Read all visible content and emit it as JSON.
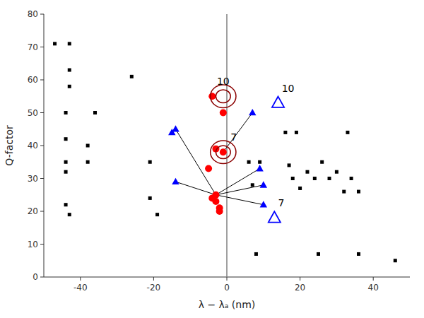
{
  "chart_data": {
    "type": "scatter",
    "xlabel": "λ − λₐ (nm)",
    "ylabel": "Q-factor",
    "xlim": [
      -50,
      50
    ],
    "ylim": [
      0,
      80
    ],
    "xticks": [
      -40,
      -20,
      0,
      20,
      40
    ],
    "yticks": [
      0,
      10,
      20,
      30,
      40,
      50,
      60,
      70,
      80
    ],
    "grid": false,
    "series": [
      {
        "type": "scatter",
        "marker": "square",
        "color": "black",
        "x": [
          -47,
          -43,
          -43,
          -43,
          -44,
          -36,
          -44,
          -38,
          -44,
          -38,
          -44,
          -44,
          -43,
          -26,
          -21,
          -21,
          -19,
          6,
          9,
          7,
          16,
          19,
          17,
          18,
          20,
          22,
          24,
          26,
          28,
          30,
          32,
          33,
          34,
          36,
          8,
          25,
          36,
          46
        ],
        "values": [
          71,
          71,
          63,
          58,
          50,
          50,
          42,
          40,
          35,
          35,
          32,
          22,
          19,
          61,
          35,
          24,
          19,
          35,
          35,
          28,
          44,
          44,
          34,
          30,
          27,
          32,
          30,
          35,
          30,
          32,
          26,
          44,
          30,
          26,
          7,
          7,
          7,
          5
        ]
      },
      {
        "type": "line",
        "line_style": "solid",
        "color": "black",
        "x": [
          -1,
          7
        ],
        "values": [
          38,
          50
        ]
      },
      {
        "type": "line",
        "line_style": "solid",
        "color": "black",
        "x": [
          -3,
          9
        ],
        "values": [
          25,
          33
        ]
      },
      {
        "type": "line",
        "line_style": "solid",
        "color": "black",
        "x": [
          -3,
          10
        ],
        "values": [
          25,
          28
        ]
      },
      {
        "type": "line",
        "line_style": "solid",
        "color": "black",
        "x": [
          -3,
          10
        ],
        "values": [
          25,
          22
        ]
      },
      {
        "type": "line",
        "line_style": "solid",
        "color": "black",
        "x": [
          -3,
          -14
        ],
        "values": [
          25,
          45
        ]
      },
      {
        "type": "line",
        "line_style": "solid",
        "color": "black",
        "x": [
          -3,
          -14
        ],
        "values": [
          25,
          29
        ]
      },
      {
        "type": "scatter",
        "marker": "circle",
        "color": "red",
        "x": [
          -4,
          -1,
          -3,
          -1,
          -5,
          -3,
          -4,
          -3,
          -2,
          -2
        ],
        "values": [
          55,
          50,
          39,
          38,
          33,
          25,
          24,
          23,
          21,
          20
        ]
      },
      {
        "type": "scatter",
        "marker": "double-ring",
        "color": "darkred",
        "x": [
          -1,
          -1
        ],
        "values": [
          55,
          38
        ]
      },
      {
        "type": "scatter",
        "marker": "triangle",
        "color": "blue",
        "x": [
          -14,
          -15,
          -14,
          7,
          9,
          10,
          10
        ],
        "values": [
          45,
          44,
          29,
          50,
          33,
          28,
          22
        ]
      },
      {
        "type": "scatter",
        "marker": "open-triangle",
        "color": "blue",
        "x": [
          14,
          13
        ],
        "values": [
          53,
          18
        ]
      }
    ],
    "reference_lines": [
      {
        "x": 0,
        "color": "gray"
      }
    ],
    "annotations": [
      {
        "text": "10",
        "x": -1,
        "y": 58,
        "align": "center"
      },
      {
        "text": "7",
        "x": 1,
        "y": 41,
        "align": "left"
      },
      {
        "text": "10",
        "x": 15,
        "y": 56,
        "align": "left"
      },
      {
        "text": "7",
        "x": 14,
        "y": 21,
        "align": "left"
      }
    ]
  }
}
